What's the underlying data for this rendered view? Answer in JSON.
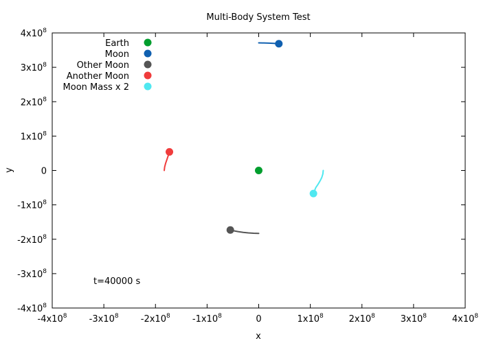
{
  "chart_data": {
    "type": "scatter",
    "title": "Multi-Body System Test",
    "xlabel": "x",
    "ylabel": "y",
    "xlim": [
      -400000000,
      400000000
    ],
    "ylim": [
      -400000000,
      400000000
    ],
    "x_ticks": [
      {
        "value": -400000000,
        "mant": "-4x10",
        "exp": "8"
      },
      {
        "value": -300000000,
        "mant": "-3x10",
        "exp": "8"
      },
      {
        "value": -200000000,
        "mant": "-2x10",
        "exp": "8"
      },
      {
        "value": -100000000,
        "mant": "-1x10",
        "exp": "8"
      },
      {
        "value": 0,
        "mant": "0",
        "exp": ""
      },
      {
        "value": 100000000,
        "mant": "1x10",
        "exp": "8"
      },
      {
        "value": 200000000,
        "mant": "2x10",
        "exp": "8"
      },
      {
        "value": 300000000,
        "mant": "3x10",
        "exp": "8"
      },
      {
        "value": 400000000,
        "mant": "4x10",
        "exp": "8"
      }
    ],
    "y_ticks": [
      {
        "value": -400000000,
        "mant": "-4x10",
        "exp": "8"
      },
      {
        "value": -300000000,
        "mant": "-3x10",
        "exp": "8"
      },
      {
        "value": -200000000,
        "mant": "-2x10",
        "exp": "8"
      },
      {
        "value": -100000000,
        "mant": "-1x10",
        "exp": "8"
      },
      {
        "value": 0,
        "mant": "0",
        "exp": ""
      },
      {
        "value": 100000000,
        "mant": "1x10",
        "exp": "8"
      },
      {
        "value": 200000000,
        "mant": "2x10",
        "exp": "8"
      },
      {
        "value": 300000000,
        "mant": "3x10",
        "exp": "8"
      },
      {
        "value": 400000000,
        "mant": "4x10",
        "exp": "8"
      }
    ],
    "annotation": "t=40000 s",
    "legend_position": "top-left",
    "grid": false,
    "series": [
      {
        "name": "Earth",
        "color": "#009e2e",
        "trail": [
          [
            0,
            0
          ]
        ],
        "position": [
          0,
          0
        ]
      },
      {
        "name": "Moon",
        "color": "#1060b0",
        "trail": [
          [
            0,
            371000000
          ],
          [
            10000000,
            370800000
          ],
          [
            20000000,
            370300000
          ],
          [
            30000000,
            369500000
          ],
          [
            39000000,
            368500000
          ]
        ],
        "position": [
          39000000,
          368500000
        ]
      },
      {
        "name": "Other Moon",
        "color": "#555555",
        "trail": [
          [
            0,
            -183000000
          ],
          [
            -10000000,
            -182600000
          ],
          [
            -20000000,
            -181600000
          ],
          [
            -30000000,
            -180000000
          ],
          [
            -40000000,
            -177800000
          ],
          [
            -48000000,
            -175500000
          ],
          [
            -55000000,
            -173000000
          ]
        ],
        "position": [
          -55000000,
          -173000000
        ]
      },
      {
        "name": "Another Moon",
        "color": "#f03c3c",
        "trail": [
          [
            -183000000,
            0
          ],
          [
            -182200000,
            10000000
          ],
          [
            -180500000,
            20000000
          ],
          [
            -178200000,
            30000000
          ],
          [
            -176000000,
            40000000
          ],
          [
            -174000000,
            48000000
          ],
          [
            -173000000,
            54000000
          ]
        ],
        "position": [
          -173000000,
          54000000
        ]
      },
      {
        "name": "Moon Mass x 2",
        "color": "#50e8f0",
        "trail": [
          [
            125000000,
            0
          ],
          [
            124300000,
            -10000000
          ],
          [
            122300000,
            -20000000
          ],
          [
            119000000,
            -30000000
          ],
          [
            115000000,
            -40000000
          ],
          [
            110500000,
            -50000000
          ],
          [
            106000000,
            -67000000
          ]
        ],
        "position": [
          106000000,
          -67000000
        ]
      }
    ]
  }
}
